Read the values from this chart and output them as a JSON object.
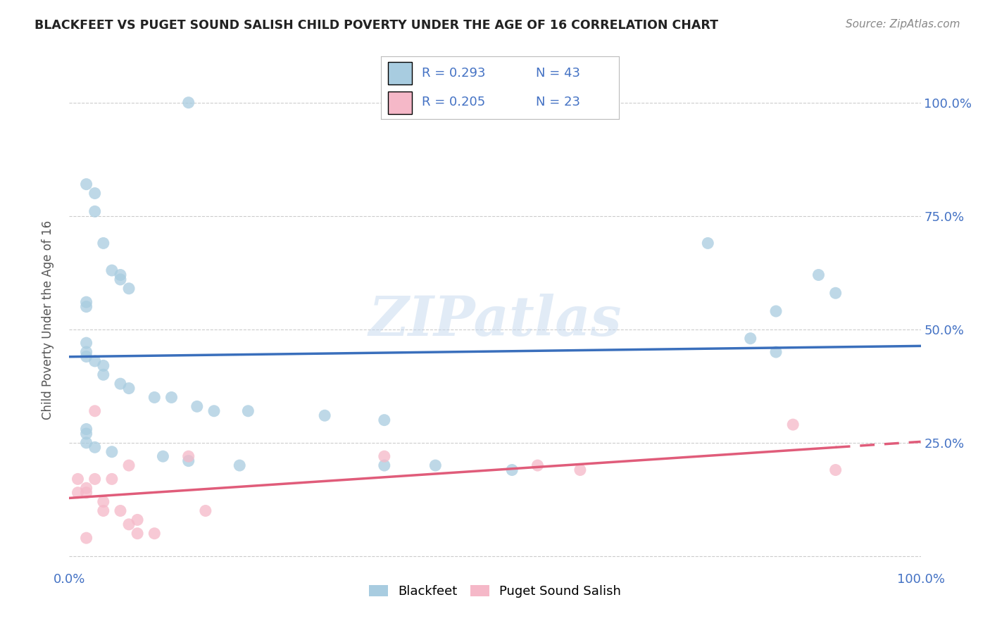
{
  "title": "BLACKFEET VS PUGET SOUND SALISH CHILD POVERTY UNDER THE AGE OF 16 CORRELATION CHART",
  "source": "Source: ZipAtlas.com",
  "ylabel": "Child Poverty Under the Age of 16",
  "watermark": "ZIPatlas",
  "blackfeet_R": "0.293",
  "blackfeet_N": "43",
  "puget_R": "0.205",
  "puget_N": "23",
  "blackfeet_color": "#a8cce0",
  "puget_color": "#f5b8c8",
  "blackfeet_line_color": "#3a6fbc",
  "puget_line_color": "#e05c7a",
  "blackfeet_x": [
    0.14,
    0.02,
    0.03,
    0.03,
    0.04,
    0.05,
    0.06,
    0.06,
    0.07,
    0.02,
    0.02,
    0.02,
    0.02,
    0.02,
    0.03,
    0.04,
    0.04,
    0.06,
    0.07,
    0.1,
    0.12,
    0.15,
    0.17,
    0.21,
    0.3,
    0.37,
    0.02,
    0.02,
    0.02,
    0.03,
    0.05,
    0.11,
    0.14,
    0.2,
    0.37,
    0.43,
    0.52,
    0.75,
    0.8,
    0.83,
    0.83,
    0.88,
    0.9
  ],
  "blackfeet_y": [
    1.0,
    0.82,
    0.8,
    0.76,
    0.69,
    0.63,
    0.62,
    0.61,
    0.59,
    0.56,
    0.55,
    0.47,
    0.45,
    0.44,
    0.43,
    0.42,
    0.4,
    0.38,
    0.37,
    0.35,
    0.35,
    0.33,
    0.32,
    0.32,
    0.31,
    0.3,
    0.28,
    0.27,
    0.25,
    0.24,
    0.23,
    0.22,
    0.21,
    0.2,
    0.2,
    0.2,
    0.19,
    0.69,
    0.48,
    0.54,
    0.45,
    0.62,
    0.58
  ],
  "puget_x": [
    0.01,
    0.01,
    0.02,
    0.02,
    0.03,
    0.03,
    0.04,
    0.04,
    0.05,
    0.06,
    0.07,
    0.07,
    0.08,
    0.08,
    0.1,
    0.14,
    0.16,
    0.37,
    0.55,
    0.6,
    0.85,
    0.9,
    0.02
  ],
  "puget_y": [
    0.17,
    0.14,
    0.15,
    0.14,
    0.17,
    0.32,
    0.12,
    0.1,
    0.17,
    0.1,
    0.2,
    0.07,
    0.05,
    0.08,
    0.05,
    0.22,
    0.1,
    0.22,
    0.2,
    0.19,
    0.29,
    0.19,
    0.04
  ],
  "background_color": "#ffffff",
  "grid_color": "#cccccc",
  "title_color": "#222222",
  "axis_color": "#4472c4",
  "legend_color": "#4472c4",
  "ytick_labels": [
    "",
    "25.0%",
    "50.0%",
    "75.0%",
    "100.0%"
  ],
  "ytick_positions": [
    0.0,
    0.25,
    0.5,
    0.75,
    1.0
  ]
}
